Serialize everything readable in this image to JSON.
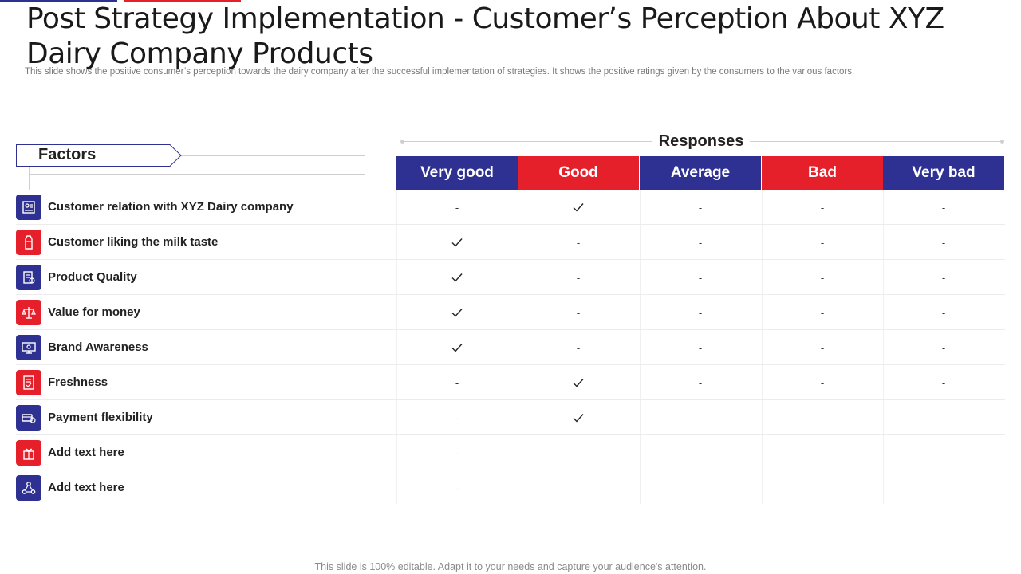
{
  "header": {
    "title": "Post Strategy Implementation - Customer’s Perception About XYZ Dairy Company Products",
    "subtitle": "This slide shows the positive consumer’s perception towards the dairy company after the successful implementation of strategies. It shows the positive ratings given by the consumers to the various factors."
  },
  "table": {
    "factors_label": "Factors",
    "responses_label": "Responses",
    "columns": [
      {
        "label": "Very good",
        "color": "#2e3192"
      },
      {
        "label": "Good",
        "color": "#e5202b"
      },
      {
        "label": "Average",
        "color": "#2e3192"
      },
      {
        "label": "Bad",
        "color": "#e5202b"
      },
      {
        "label": "Very bad",
        "color": "#2e3192"
      }
    ],
    "check_symbol": "✓",
    "dash_symbol": "-",
    "rows": [
      {
        "factor": "Customer relation with XYZ Dairy company",
        "icon": "customer-relation-icon",
        "icon_color": "#2e3192",
        "response": "Good"
      },
      {
        "factor": "Customer liking the milk taste",
        "icon": "milk-carton-icon",
        "icon_color": "#e5202b",
        "response": "Very good"
      },
      {
        "factor": "Product Quality",
        "icon": "quality-icon",
        "icon_color": "#2e3192",
        "response": "Very good"
      },
      {
        "factor": "Value for money",
        "icon": "money-scale-icon",
        "icon_color": "#e5202b",
        "response": "Very good"
      },
      {
        "factor": "Brand Awareness",
        "icon": "brand-monitor-icon",
        "icon_color": "#2e3192",
        "response": "Very good"
      },
      {
        "factor": "Freshness",
        "icon": "freshness-document-icon",
        "icon_color": "#e5202b",
        "response": "Good"
      },
      {
        "factor": "Payment flexibility",
        "icon": "payment-icon",
        "icon_color": "#2e3192",
        "response": "Good"
      },
      {
        "factor": "Add text here",
        "icon": "gift-icon",
        "icon_color": "#e5202b",
        "response": ""
      },
      {
        "factor": "Add text here",
        "icon": "network-icon",
        "icon_color": "#2e3192",
        "response": ""
      }
    ]
  },
  "footer": {
    "text": "This slide is 100% editable. Adapt it to your needs and capture your audience's attention."
  }
}
